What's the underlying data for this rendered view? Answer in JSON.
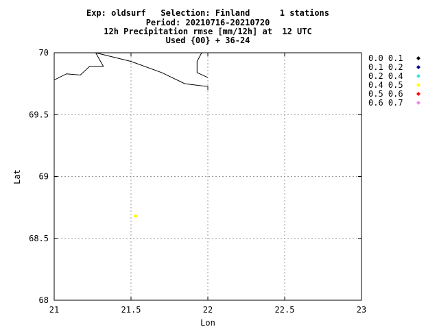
{
  "title_lines": [
    "Exp: oldsurf   Selection: Finland      1 stations",
    "Period: 20210716-20210720",
    "12h Precipitation rmse [mm/12h] at  12 UTC",
    "Used {00} + 36-24"
  ],
  "chart_data": {
    "type": "scatter",
    "xlabel": "Lon",
    "ylabel": "Lat",
    "xlim": [
      21,
      23
    ],
    "ylim": [
      68,
      70
    ],
    "xticks": [
      21,
      21.5,
      22,
      22.5,
      23
    ],
    "xtick_labels": [
      "21",
      "21.5",
      "22",
      "22.5",
      "23"
    ],
    "yticks": [
      68,
      68.5,
      69,
      69.5,
      70
    ],
    "ytick_labels": [
      "68",
      "68.5",
      "69",
      "69.5",
      "70"
    ],
    "grid": true,
    "legend_placement": "right",
    "legend": [
      {
        "label": "0.0 0.1",
        "color": "#000000"
      },
      {
        "label": "0.1 0.2",
        "color": "#00008b"
      },
      {
        "label": "0.2 0.4",
        "color": "#40e0d0"
      },
      {
        "label": "0.4 0.5",
        "color": "#ffff00"
      },
      {
        "label": "0.5 0.6",
        "color": "#ff0000"
      },
      {
        "label": "0.6 0.7",
        "color": "#ee82ee"
      }
    ],
    "points": [
      {
        "lon": 21.53,
        "lat": 68.68,
        "color": "#ffff00"
      }
    ],
    "coastlines": [
      [
        [
          21,
          69.78
        ],
        [
          21.08,
          69.83
        ],
        [
          21.17,
          69.82
        ],
        [
          21.23,
          69.89
        ],
        [
          21.32,
          69.89
        ],
        [
          21.27,
          70
        ]
      ],
      [
        [
          21.27,
          70
        ],
        [
          21.5,
          69.93
        ],
        [
          21.7,
          69.84
        ],
        [
          21.85,
          69.75
        ],
        [
          21.98,
          69.73
        ],
        [
          22,
          69.73
        ],
        [
          22,
          69.7
        ]
      ],
      [
        [
          22,
          69.8
        ],
        [
          21.93,
          69.84
        ],
        [
          21.93,
          69.93
        ],
        [
          21.96,
          70
        ]
      ]
    ]
  }
}
